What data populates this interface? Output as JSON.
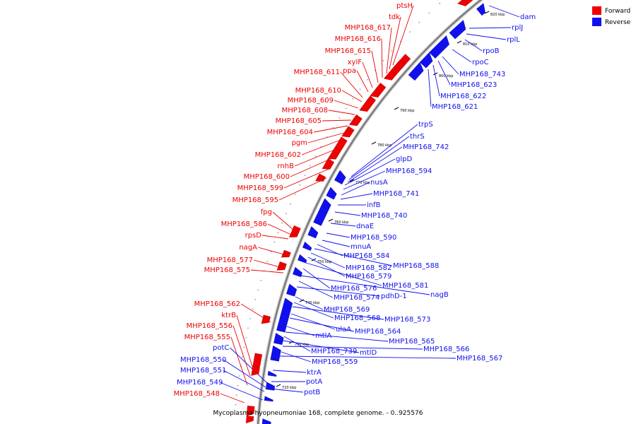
{
  "caption": "Mycoplasma hyopneumoniae 168, complete genome. - 0..925576",
  "legend": [
    {
      "label": "Forward",
      "color": "#ee0000"
    },
    {
      "label": "Reverse",
      "color": "#1010ee"
    }
  ],
  "tick_labels": [
    "820 kbp",
    "810 kbp",
    "800 kbp",
    "790 kbp",
    "780 kbp",
    "770 kbp",
    "760 kbp",
    "750 kbp",
    "740 kbp",
    "730 kbp",
    "720 kbp"
  ],
  "forward_labels": [
    "ptsH",
    "tdk",
    "MHP168_617",
    "MHP168_616",
    "MHP168_615",
    "xylF",
    "ppa",
    "MHP168_611",
    "MHP168_610",
    "MHP168_609",
    "MHP168_608",
    "MHP168_605",
    "MHP168_604",
    "pgm",
    "MHP168_602",
    "rnhB",
    "MHP168_600",
    "MHP168_599",
    "MHP168_595",
    "fpg",
    "MHP168_586",
    "rpsD",
    "nagA",
    "MHP168_577",
    "MHP168_575",
    "MHP168_562",
    "ktrB",
    "MHP168_556",
    "MHP168_555",
    "MHP168_548"
  ],
  "reverse_labels": [
    "dam",
    "rplJ",
    "rplL",
    "rpoB",
    "rpoC",
    "MHP168_743",
    "MHP168_623",
    "MHP168_622",
    "MHP168_621",
    "trpS",
    "thrS",
    "MHP168_742",
    "glpD",
    "MHP168_594",
    "nusA",
    "MHP168_741",
    "infB",
    "MHP168_740",
    "dnaE",
    "MHP168_590",
    "mnuA",
    "MHP168_584",
    "MHP168_588",
    "MHP168_582",
    "MHP168_579",
    "MHP168_581",
    "MHP168_576",
    "nagB",
    "MHP168_574",
    "pdhD-1",
    "MHP168_569",
    "MHP168_568",
    "MHP168_573",
    "ulaA",
    "MHP168_564",
    "mtlA",
    "MHP168_565",
    "MHP168_739",
    "mtlD",
    "MHP168_566",
    "MHP168_559",
    "MHP168_567",
    "potC",
    "MHP168_550",
    "MHP168_551",
    "ktrA",
    "MHP168_549",
    "potA",
    "potB"
  ],
  "colors": {
    "forward": "#ee0000",
    "reverse": "#1010ee",
    "backbone": "#888888"
  }
}
